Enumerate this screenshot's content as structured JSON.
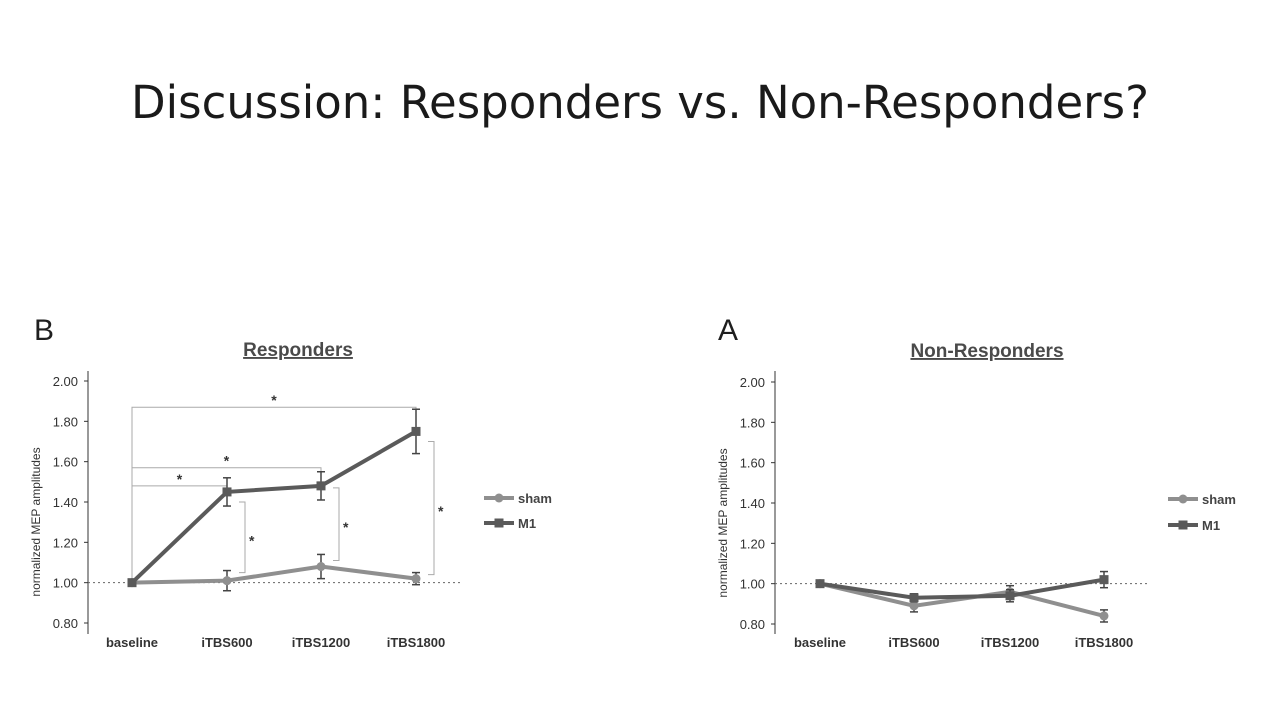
{
  "slide": {
    "title": "Discussion: Responders vs. Non-Responders?"
  },
  "chart_data": [
    {
      "type": "line",
      "panel": "B",
      "title": "Responders",
      "xlabel": "",
      "ylabel": "normalized MEP amplitudes",
      "categories": [
        "baseline",
        "iTBS600",
        "iTBS1200",
        "iTBS1800"
      ],
      "ylim": [
        0.8,
        2.0
      ],
      "yticks": [
        "0.80",
        "1.00",
        "1.20",
        "1.40",
        "1.60",
        "1.80",
        "2.00"
      ],
      "reference_line": 1.0,
      "series": [
        {
          "name": "sham",
          "marker": "circle",
          "color": "#8f8f8f",
          "values": [
            1.0,
            1.01,
            1.08,
            1.02
          ],
          "errors": [
            0,
            0.05,
            0.06,
            0.03
          ]
        },
        {
          "name": "M1",
          "marker": "square",
          "color": "#5a5a5a",
          "values": [
            1.0,
            1.45,
            1.48,
            1.75
          ],
          "errors": [
            0,
            0.07,
            0.07,
            0.11
          ]
        }
      ],
      "significance": [
        {
          "label": "*",
          "type": "horizontal",
          "from": 0,
          "to": 3,
          "y": 1.87
        },
        {
          "label": "*",
          "type": "horizontal",
          "from": 0,
          "to": 2,
          "y": 1.57
        },
        {
          "label": "*",
          "type": "horizontal",
          "from": 0,
          "to": 1,
          "y": 1.48
        },
        {
          "label": "*",
          "type": "vertical",
          "at": 1,
          "y1": 1.05,
          "y2": 1.4
        },
        {
          "label": "*",
          "type": "vertical",
          "at": 2,
          "y1": 1.11,
          "y2": 1.47
        },
        {
          "label": "*",
          "type": "vertical",
          "at": 3,
          "y1": 1.04,
          "y2": 1.7
        }
      ],
      "legend": "right"
    },
    {
      "type": "line",
      "panel": "A",
      "title": "Non-Responders",
      "xlabel": "",
      "ylabel": "normalized MEP amplitudes",
      "categories": [
        "baseline",
        "iTBS600",
        "iTBS1200",
        "iTBS1800"
      ],
      "ylim": [
        0.8,
        2.0
      ],
      "yticks": [
        "0.80",
        "1.00",
        "1.20",
        "1.40",
        "1.60",
        "1.80",
        "2.00"
      ],
      "reference_line": 1.0,
      "series": [
        {
          "name": "sham",
          "marker": "circle",
          "color": "#8f8f8f",
          "values": [
            1.0,
            0.89,
            0.96,
            0.84
          ],
          "errors": [
            0,
            0.03,
            0.03,
            0.03
          ]
        },
        {
          "name": "M1",
          "marker": "square",
          "color": "#5a5a5a",
          "values": [
            1.0,
            0.93,
            0.94,
            1.02
          ],
          "errors": [
            0,
            0.02,
            0.03,
            0.04
          ]
        }
      ],
      "significance": [],
      "legend": "right"
    }
  ]
}
